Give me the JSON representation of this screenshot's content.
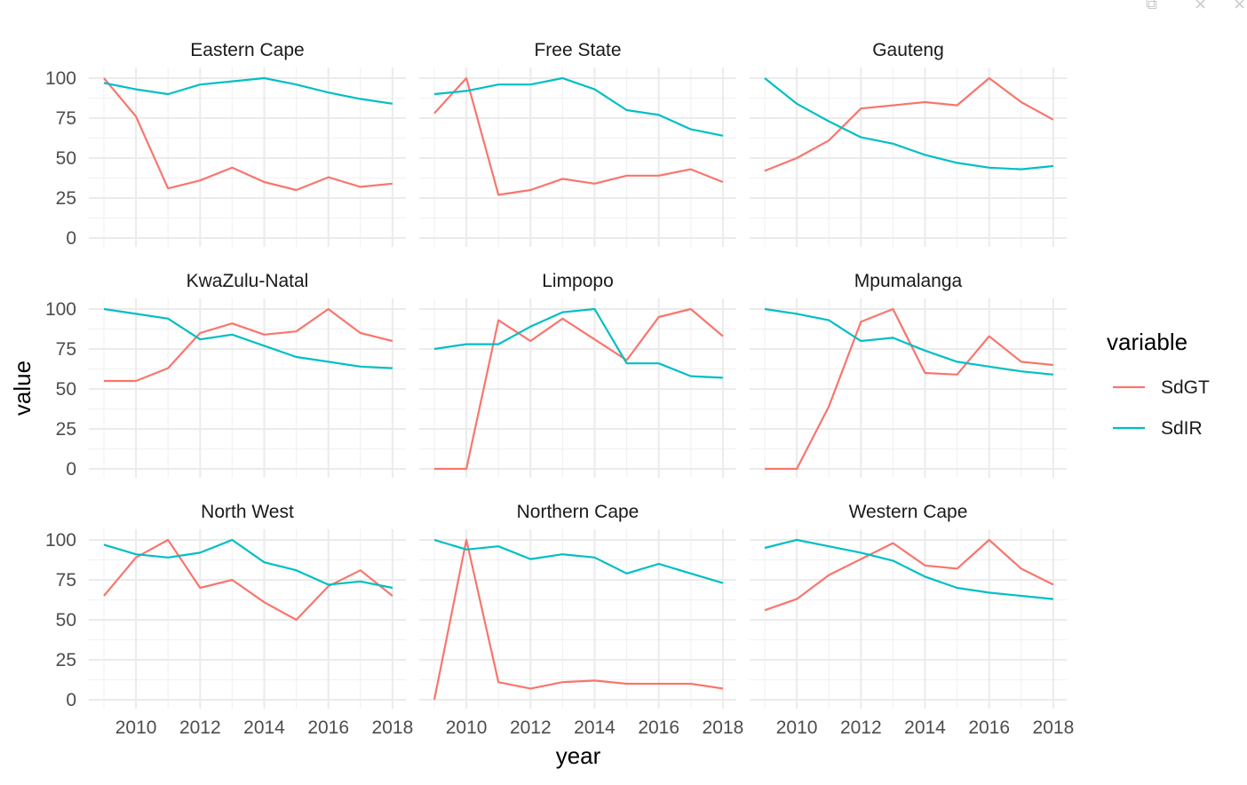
{
  "window": {
    "controls": [
      {
        "name": "popout-icon",
        "glyph": "⧉"
      },
      {
        "name": "minimize-icon",
        "glyph": "×"
      },
      {
        "name": "close-icon",
        "glyph": "×"
      }
    ]
  },
  "chart_data": {
    "type": "line",
    "facet": "wrap",
    "ncol": 3,
    "xlabel": "year",
    "ylabel": "value",
    "xlim": [
      2009,
      2018
    ],
    "ylim": [
      0,
      100
    ],
    "x_ticks": [
      2010,
      2012,
      2014,
      2016,
      2018
    ],
    "y_ticks": [
      0,
      25,
      50,
      75,
      100
    ],
    "grid": true,
    "legend": {
      "title": "variable",
      "position": "right",
      "entries": [
        {
          "name": "SdGT",
          "color": "#F8766D"
        },
        {
          "name": "SdIR",
          "color": "#00BFC4"
        }
      ]
    },
    "x": [
      2009,
      2010,
      2011,
      2012,
      2013,
      2014,
      2015,
      2016,
      2017,
      2018
    ],
    "panels": [
      {
        "title": "Eastern Cape",
        "series": [
          {
            "name": "SdGT",
            "values": [
              100,
              76,
              31,
              36,
              44,
              35,
              30,
              38,
              32,
              34
            ]
          },
          {
            "name": "SdIR",
            "values": [
              97,
              93,
              90,
              96,
              98,
              100,
              96,
              91,
              87,
              84
            ]
          }
        ]
      },
      {
        "title": "Free State",
        "series": [
          {
            "name": "SdGT",
            "values": [
              78,
              100,
              27,
              30,
              37,
              34,
              39,
              39,
              43,
              35
            ]
          },
          {
            "name": "SdIR",
            "values": [
              90,
              92,
              96,
              96,
              100,
              93,
              80,
              77,
              68,
              64
            ]
          }
        ]
      },
      {
        "title": "Gauteng",
        "series": [
          {
            "name": "SdGT",
            "values": [
              42,
              50,
              61,
              81,
              83,
              85,
              83,
              100,
              85,
              74
            ]
          },
          {
            "name": "SdIR",
            "values": [
              100,
              84,
              73,
              63,
              59,
              52,
              47,
              44,
              43,
              45
            ]
          }
        ]
      },
      {
        "title": "KwaZulu-Natal",
        "series": [
          {
            "name": "SdGT",
            "values": [
              55,
              55,
              63,
              85,
              91,
              84,
              86,
              100,
              85,
              80
            ]
          },
          {
            "name": "SdIR",
            "values": [
              100,
              97,
              94,
              81,
              84,
              77,
              70,
              67,
              64,
              63
            ]
          }
        ]
      },
      {
        "title": "Limpopo",
        "series": [
          {
            "name": "SdGT",
            "values": [
              0,
              0,
              93,
              80,
              94,
              81,
              68,
              95,
              100,
              83
            ]
          },
          {
            "name": "SdIR",
            "values": [
              75,
              78,
              78,
              89,
              98,
              100,
              66,
              66,
              58,
              57
            ]
          }
        ]
      },
      {
        "title": "Mpumalanga",
        "series": [
          {
            "name": "SdGT",
            "values": [
              0,
              0,
              39,
              92,
              100,
              60,
              59,
              83,
              67,
              65
            ]
          },
          {
            "name": "SdIR",
            "values": [
              100,
              97,
              93,
              80,
              82,
              74,
              67,
              64,
              61,
              59
            ]
          }
        ]
      },
      {
        "title": "North West",
        "series": [
          {
            "name": "SdGT",
            "values": [
              65,
              89,
              100,
              70,
              75,
              61,
              50,
              71,
              81,
              65
            ]
          },
          {
            "name": "SdIR",
            "values": [
              97,
              91,
              89,
              92,
              100,
              86,
              81,
              72,
              74,
              70
            ]
          }
        ]
      },
      {
        "title": "Northern Cape",
        "series": [
          {
            "name": "SdGT",
            "values": [
              0,
              100,
              11,
              7,
              11,
              12,
              10,
              10,
              10,
              7
            ]
          },
          {
            "name": "SdIR",
            "values": [
              100,
              94,
              96,
              88,
              91,
              89,
              79,
              85,
              79,
              73
            ]
          }
        ]
      },
      {
        "title": "Western Cape",
        "series": [
          {
            "name": "SdGT",
            "values": [
              56,
              63,
              78,
              88,
              98,
              84,
              82,
              100,
              82,
              72
            ]
          },
          {
            "name": "SdIR",
            "values": [
              95,
              100,
              96,
              92,
              87,
              77,
              70,
              67,
              65,
              63
            ]
          }
        ]
      }
    ]
  }
}
